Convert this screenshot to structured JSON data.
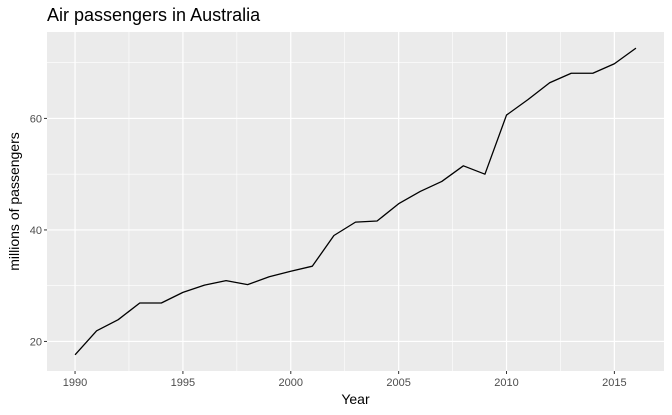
{
  "chart_data": {
    "type": "line",
    "title": "Air passengers in Australia",
    "xlabel": "Year",
    "ylabel": "millions of passengers",
    "x": [
      1990,
      1991,
      1992,
      1993,
      1994,
      1995,
      1996,
      1997,
      1998,
      1999,
      2000,
      2001,
      2002,
      2003,
      2004,
      2005,
      2006,
      2007,
      2008,
      2009,
      2010,
      2011,
      2012,
      2013,
      2014,
      2015,
      2016
    ],
    "series": [
      {
        "values": [
          17.6,
          21.9,
          23.9,
          26.9,
          26.9,
          28.8,
          30.1,
          30.9,
          30.2,
          31.6,
          32.6,
          33.5,
          39.0,
          41.4,
          41.6,
          44.7,
          46.9,
          48.7,
          51.5,
          50.0,
          60.6,
          63.4,
          66.4,
          68.1,
          68.1,
          69.8,
          72.6
        ],
        "color": "#000000"
      }
    ],
    "xlim": [
      1988.7,
      2017.3
    ],
    "ylim": [
      14.7,
      75.5
    ],
    "x_ticks": [
      1990,
      1995,
      2000,
      2005,
      2010,
      2015
    ],
    "x_tick_labels": [
      "1990",
      "1995",
      "2000",
      "2005",
      "2010",
      "2015"
    ],
    "y_ticks": [
      20,
      40,
      60
    ],
    "y_tick_labels": [
      "20",
      "40",
      "60"
    ],
    "grid": true,
    "panel_background": "#ebebeb",
    "grid_color": "#ffffff",
    "axis_text_color": "#4d4d4d",
    "tick_color": "#333333"
  }
}
